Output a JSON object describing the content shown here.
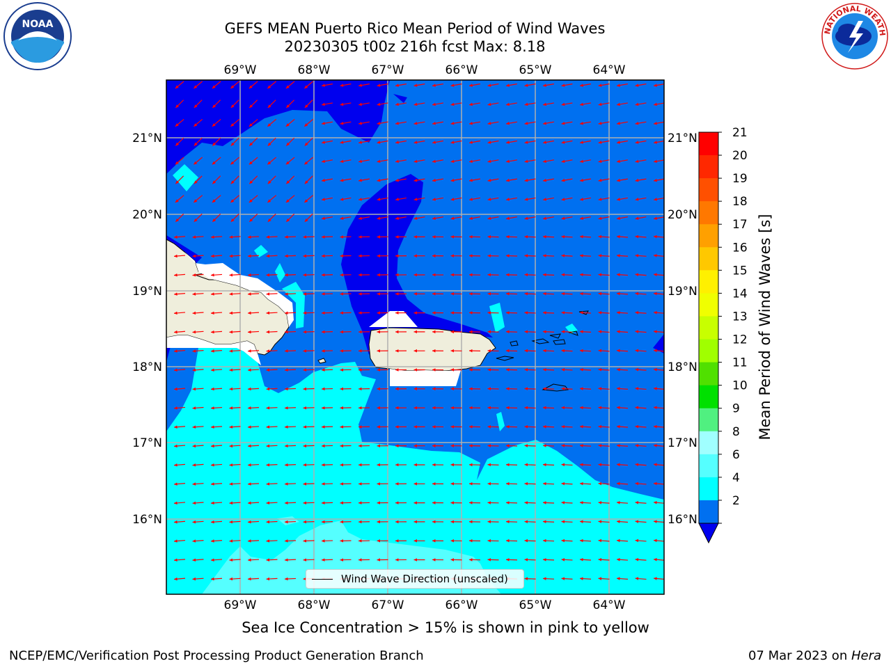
{
  "title": {
    "line1": "GEFS MEAN Puerto Rico Mean Period of Wind Waves",
    "line2": "20230305 t00z 216h fcst   Max: 8.18"
  },
  "logos": {
    "left": {
      "name": "noaa-logo",
      "text": "NOAA"
    },
    "right": {
      "name": "nws-logo",
      "text": "NATIONAL WEATHER SERVICE"
    }
  },
  "map": {
    "lon_labels": [
      "69°W",
      "68°W",
      "67°W",
      "66°W",
      "65°W",
      "64°W"
    ],
    "lat_labels": [
      "21°N",
      "20°N",
      "19°N",
      "18°N",
      "17°N",
      "16°N"
    ],
    "lon_range": [
      -69.98,
      -63.25
    ],
    "lat_range": [
      15.0,
      21.75
    ],
    "colors": {
      "deep_blue": "#0000ee",
      "blue": "#0070f0",
      "cyan": "#00ffff",
      "light_cyan": "#55ffff",
      "land": "#efeedc",
      "arrow": "#ff0000",
      "grid": "#b0b0b0"
    },
    "arrow_direction": "toward west-southwest"
  },
  "legend": {
    "label": "Wind Wave Direction (unscaled)"
  },
  "colorbar": {
    "label": "Mean Period of Wind Waves [s]",
    "ticks": [
      "21",
      "20",
      "19",
      "18",
      "17",
      "16",
      "15",
      "14",
      "13",
      "12",
      "11",
      "10",
      "9",
      "8",
      "6",
      "4",
      "2"
    ],
    "colors": [
      "#ff0000",
      "#ff2800",
      "#ff5000",
      "#ff7800",
      "#ffa000",
      "#ffc800",
      "#fff000",
      "#f0ff00",
      "#c8ff00",
      "#a0ff00",
      "#50e000",
      "#00e000",
      "#50f080",
      "#a0ffff",
      "#55ffff",
      "#00ffff",
      "#0070f0"
    ],
    "extend_color": "#0000ee"
  },
  "notes": {
    "ice": "Sea Ice Concentration > 15% is shown in pink to yellow",
    "footer_left": "NCEP/EMC/Verification Post Processing Product Generation Branch",
    "footer_right_date": "07 Mar 2023 on ",
    "footer_right_host": "Hera"
  }
}
